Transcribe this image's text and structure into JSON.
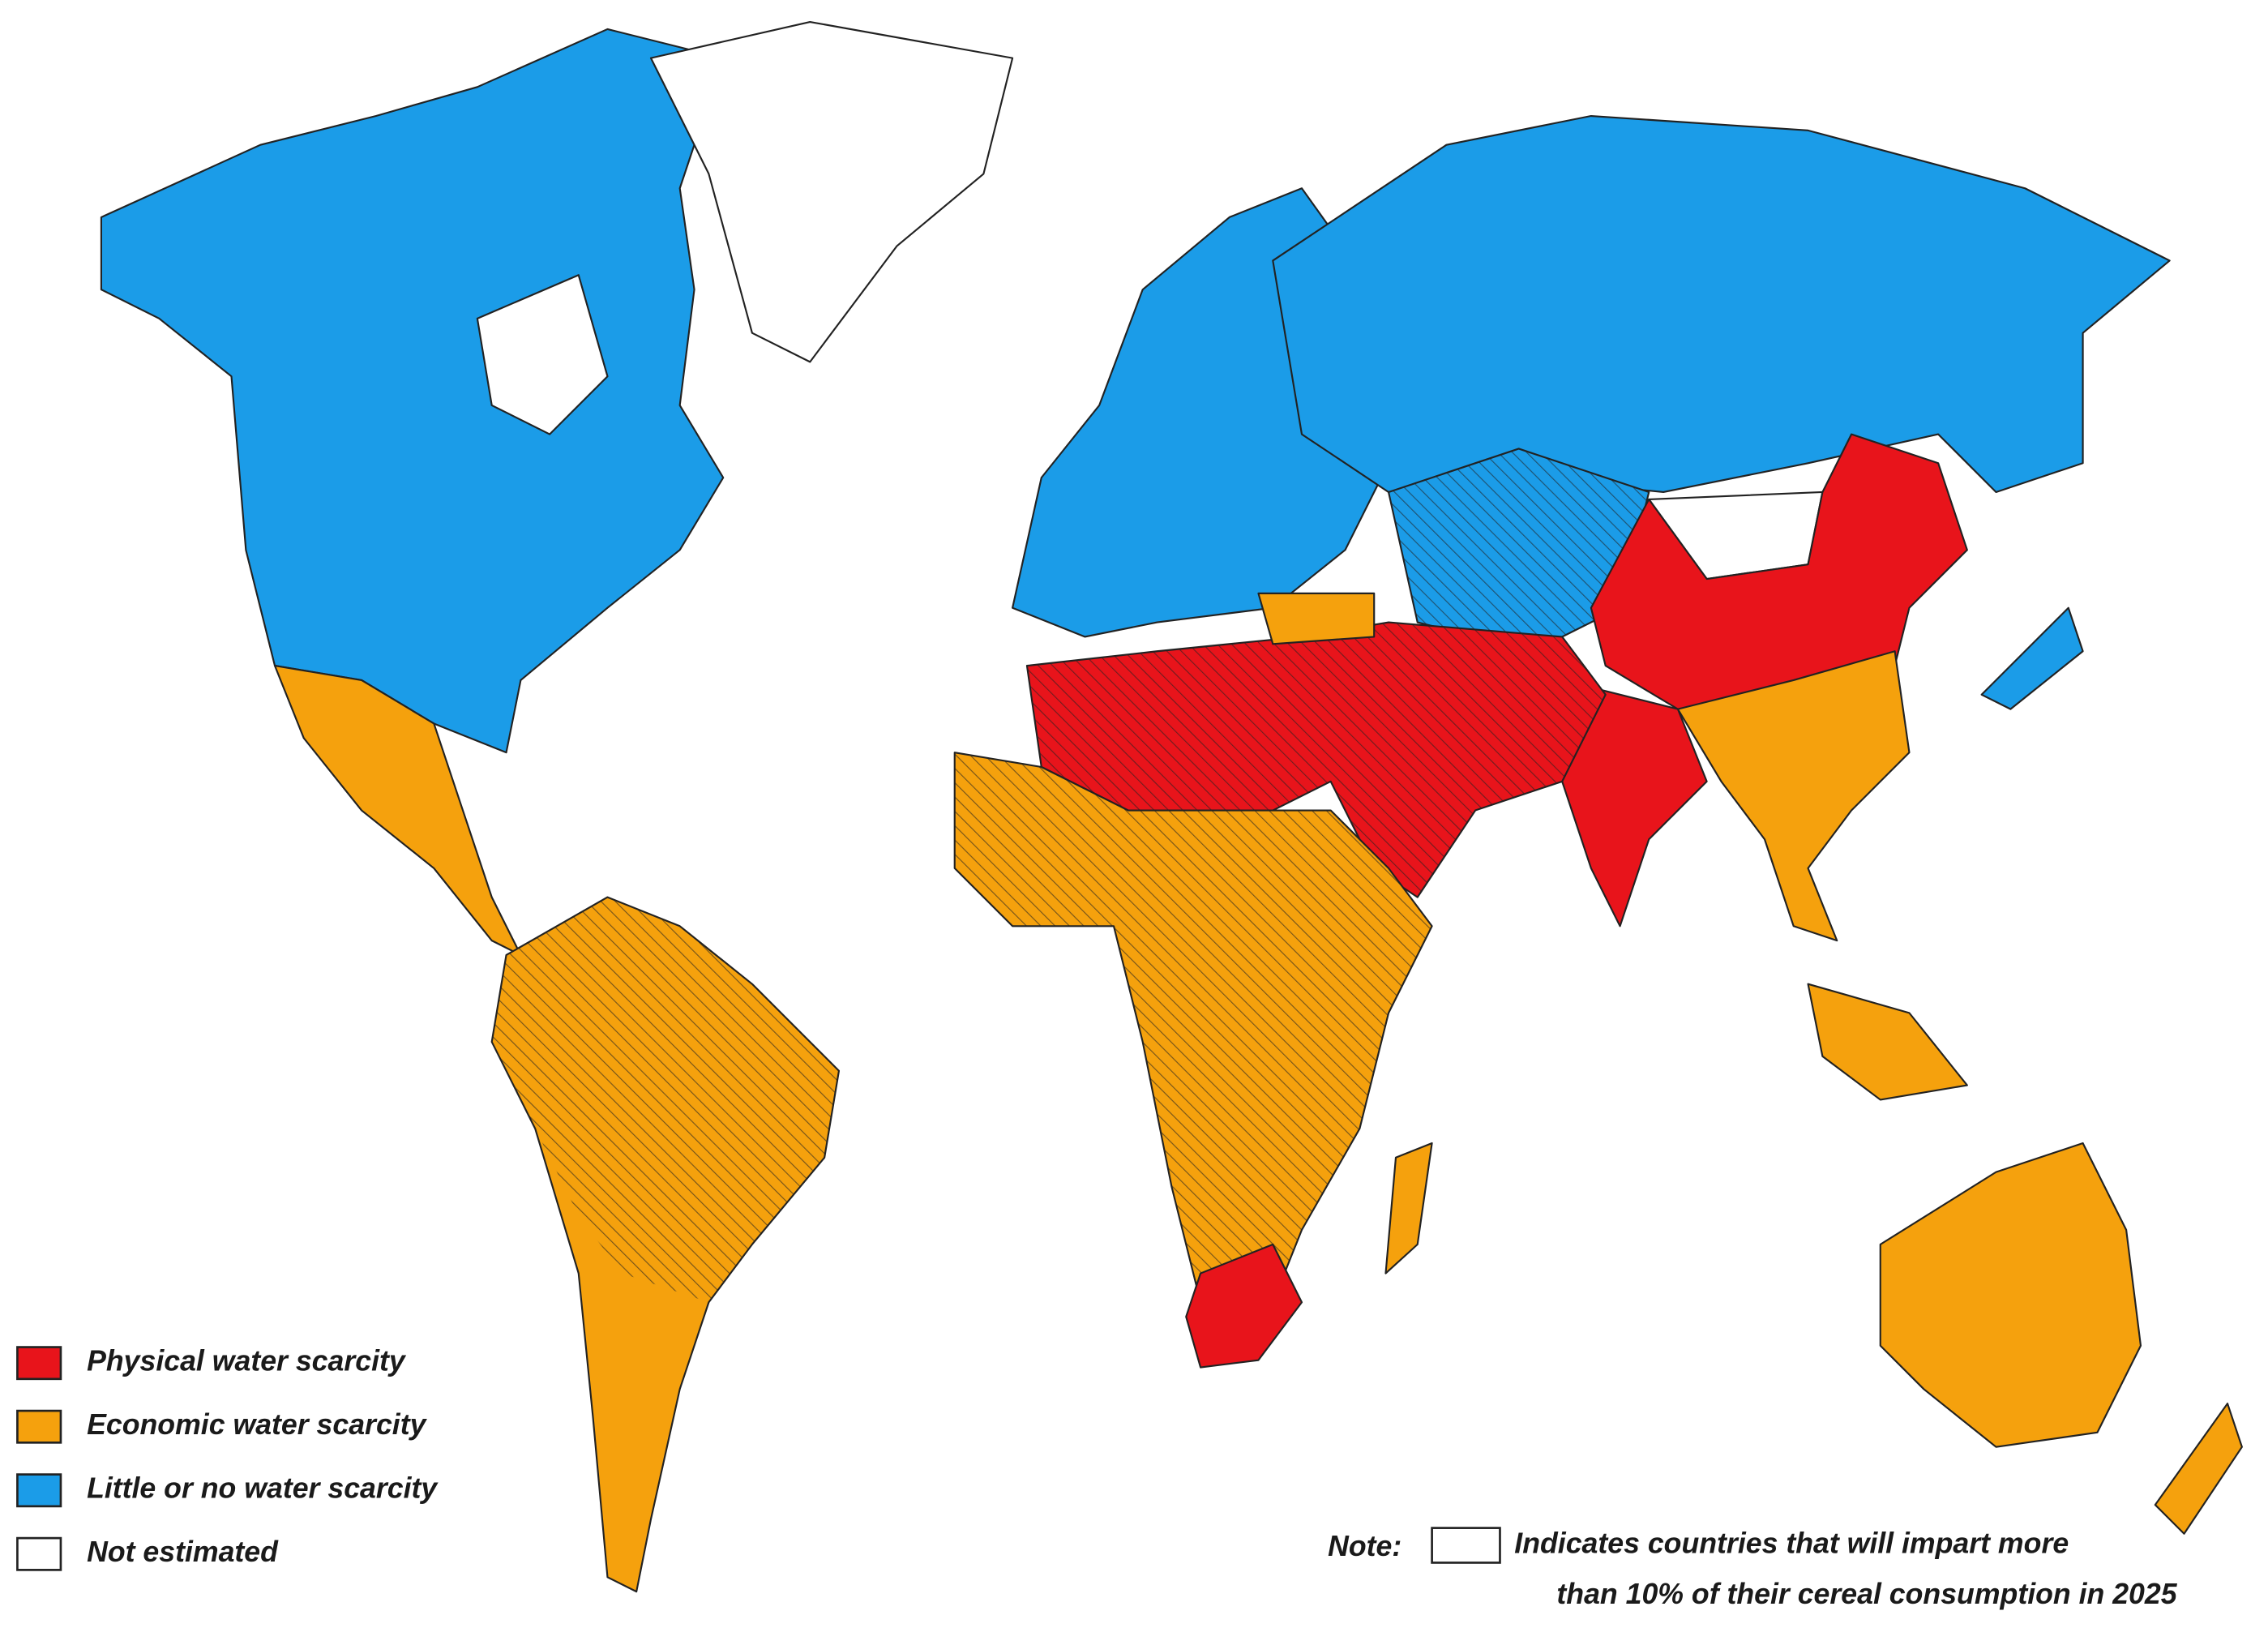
{
  "legend": [
    {
      "label": "Physical water scarcity",
      "color": "#e8141b"
    },
    {
      "label": "Economic water scarcity",
      "color": "#f5a10d"
    },
    {
      "label": "Little or no water scarcity",
      "color": "#1b9ce8"
    },
    {
      "label": "Not estimated",
      "color": "#ffffff"
    }
  ],
  "note": {
    "prefix": "Note:",
    "lines": [
      "Indicates countries that will impart more",
      "than 10% of their cereal consumption in 2025"
    ]
  }
}
